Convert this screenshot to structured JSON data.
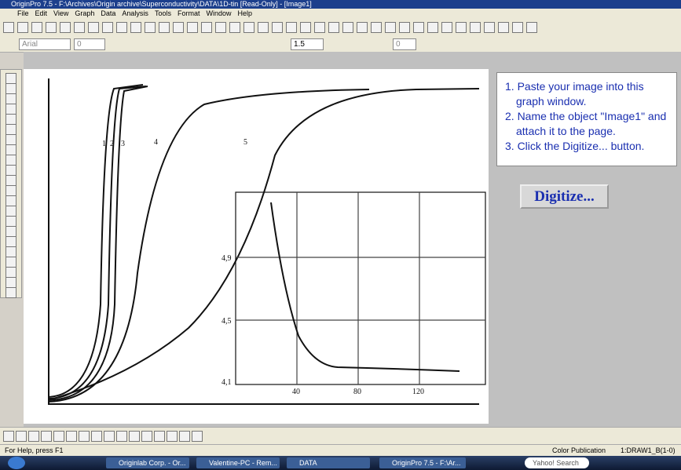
{
  "window": {
    "title": "OriginPro 7.5 - F:\\Archives\\Origin archive\\Superconductivity\\DATA\\1D-tin [Read-Only] - [Image1]"
  },
  "menu": [
    "File",
    "Edit",
    "View",
    "Graph",
    "Data",
    "Analysis",
    "Tools",
    "Format",
    "Window",
    "Help"
  ],
  "format_toolbar": {
    "font": "Arial",
    "size": "0",
    "line_width": "1.5",
    "other": "0"
  },
  "scan": {
    "curve_labels": [
      "1",
      "2",
      "3",
      "4",
      "5"
    ],
    "inset_y_labels": [
      "4,9",
      "4,5",
      "4,1"
    ],
    "inset_x_labels": [
      "40",
      "80",
      "120"
    ]
  },
  "instructions": [
    "1. Paste your image into this graph window.",
    "2. Name the object \"Image1\" and attach it to the page.",
    "3. Click the Digitize... button."
  ],
  "button": "Digitize...",
  "status": {
    "help": "For Help, press F1",
    "mode": "Color Publication",
    "layer": "1:DRAW1_B(1-0)"
  },
  "taskbar": [
    "Originlab Corp. - Or...",
    "Valentine-PC - Rem...",
    "DATA",
    "OriginPro 7.5 - F:\\Ar...",
    "Yahoo! Search"
  ]
}
